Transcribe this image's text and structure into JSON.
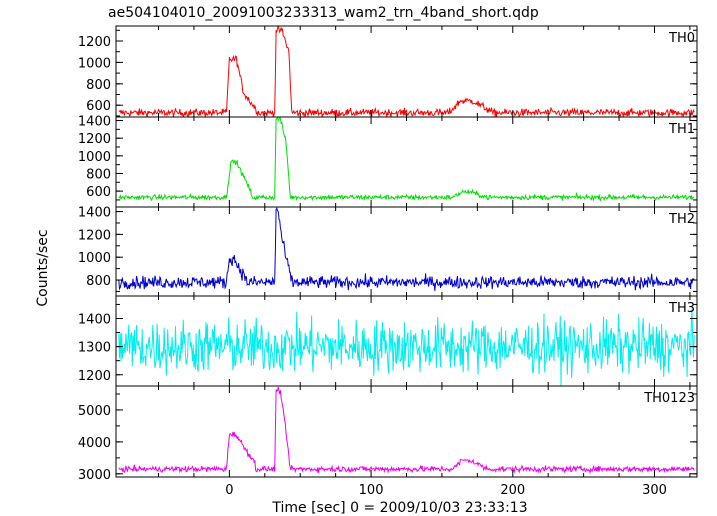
{
  "chart_data": {
    "type": "line",
    "title": "ae504104010_20091003233313_wam2_trn_4band_short.qdp",
    "xlabel": "Time [sec] 0 = 2009/10/03 23:33:13",
    "ylabel": "Counts/sec",
    "xlim": [
      -80,
      330
    ],
    "x_ticks": [
      0,
      100,
      200,
      300
    ],
    "grid": false,
    "panels": [
      {
        "name": "TH0",
        "color": "#ff0000",
        "ylim": [
          490,
          1340
        ],
        "y_ticks": [
          600,
          800,
          1000,
          1200
        ],
        "baseline": 530,
        "noise": 18,
        "features": [
          {
            "t0": -2,
            "rise": 2,
            "peak": 1030,
            "t_peak_end": 5,
            "decay_to": 720,
            "t_end": 10
          },
          {
            "t0": 10,
            "rise": 0,
            "peak": 720,
            "t_peak_end": 10,
            "decay_to": 540,
            "t_end": 20
          },
          {
            "t0": 32,
            "rise": 1,
            "peak": 1300,
            "t_peak_end": 37,
            "decay_to": 1100,
            "t_end": 42
          },
          {
            "t0": 42,
            "rise": 0,
            "peak": 1100,
            "t_peak_end": 42,
            "decay_to": 540,
            "t_end": 44
          },
          {
            "t0": 155,
            "rise": 8,
            "peak": 640,
            "t_peak_end": 172,
            "decay_to": 540,
            "t_end": 185
          }
        ]
      },
      {
        "name": "TH1",
        "color": "#00dd00",
        "ylim": [
          420,
          1440
        ],
        "y_ticks": [
          600,
          800,
          1000,
          1200,
          1400
        ],
        "baseline": 530,
        "noise": 14,
        "features": [
          {
            "t0": -2,
            "rise": 3,
            "peak": 930,
            "t_peak_end": 5,
            "decay_to": 600,
            "t_end": 15
          },
          {
            "t0": 32,
            "rise": 1,
            "peak": 1420,
            "t_peak_end": 36,
            "decay_to": 1150,
            "t_end": 40
          },
          {
            "t0": 40,
            "rise": 0,
            "peak": 1150,
            "t_peak_end": 40,
            "decay_to": 530,
            "t_end": 43
          },
          {
            "t0": 158,
            "rise": 6,
            "peak": 590,
            "t_peak_end": 170,
            "decay_to": 530,
            "t_end": 182
          }
        ]
      },
      {
        "name": "TH2",
        "color": "#0000cc",
        "ylim": [
          660,
          1440
        ],
        "y_ticks": [
          800,
          1000,
          1200,
          1400
        ],
        "baseline": 780,
        "noise": 28,
        "features": [
          {
            "t0": -2,
            "rise": 2,
            "peak": 990,
            "t_peak_end": 3,
            "decay_to": 800,
            "t_end": 12
          },
          {
            "t0": 32,
            "rise": 1,
            "peak": 1420,
            "t_peak_end": 34,
            "decay_to": 1100,
            "t_end": 38
          },
          {
            "t0": 38,
            "rise": 0,
            "peak": 1100,
            "t_peak_end": 38,
            "decay_to": 790,
            "t_end": 44
          }
        ]
      },
      {
        "name": "TH3",
        "color": "#00eeee",
        "ylim": [
          1160,
          1480
        ],
        "y_ticks": [
          1200,
          1300,
          1400
        ],
        "baseline": 1300,
        "noise": 48,
        "features": []
      },
      {
        "name": "TH0123",
        "color": "#ee00ee",
        "ylim": [
          2900,
          5750
        ],
        "y_ticks": [
          3000,
          4000,
          5000
        ],
        "baseline": 3150,
        "noise": 45,
        "features": [
          {
            "t0": -2,
            "rise": 2,
            "peak": 4250,
            "t_peak_end": 4,
            "decay_to": 3350,
            "t_end": 18
          },
          {
            "t0": 32,
            "rise": 1,
            "peak": 5600,
            "t_peak_end": 36,
            "decay_to": 4300,
            "t_end": 40
          },
          {
            "t0": 40,
            "rise": 0,
            "peak": 4300,
            "t_peak_end": 40,
            "decay_to": 3150,
            "t_end": 43
          },
          {
            "t0": 158,
            "rise": 6,
            "peak": 3420,
            "t_peak_end": 170,
            "decay_to": 3150,
            "t_end": 182
          }
        ]
      }
    ]
  }
}
